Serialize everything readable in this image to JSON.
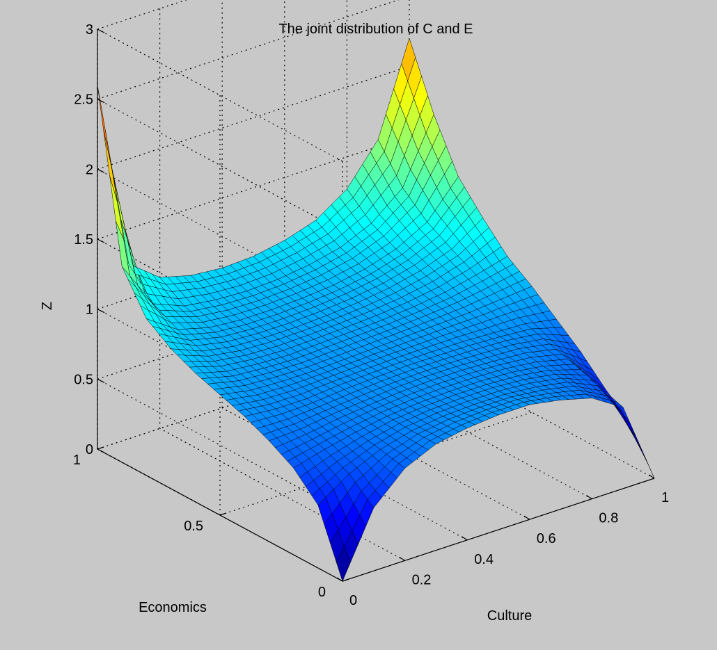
{
  "chart_data": {
    "type": "surface",
    "title": "The joint distribution of C and E",
    "xlabel": "Culture",
    "ylabel": "Economics",
    "zlabel": "Z",
    "xlim": [
      0,
      1
    ],
    "ylim": [
      0,
      1
    ],
    "zlim": [
      0,
      3
    ],
    "x_ticks": [
      "0",
      "0.2",
      "0.4",
      "0.6",
      "0.8",
      "1"
    ],
    "y_ticks": [
      "0",
      "0.5",
      "1"
    ],
    "z_ticks": [
      "0",
      "0.5",
      "1",
      "1.5",
      "2",
      "2.5",
      "3"
    ],
    "grid": true,
    "colormap": "jet",
    "corner_values": [
      {
        "culture": 0,
        "economics": 0,
        "z": 0.0
      },
      {
        "culture": 0,
        "economics": 1,
        "z": 2.6
      },
      {
        "culture": 1,
        "economics": 1,
        "z": 2.2
      },
      {
        "culture": 1,
        "economics": 0,
        "z": 0.0
      }
    ],
    "grid_rows": [
      {
        "economics": 0.0,
        "z": [
          0.0,
          0.45,
          0.66,
          0.76,
          0.8,
          0.82,
          0.82,
          0.78,
          0.72,
          0.58,
          0.0
        ]
      },
      {
        "economics": 0.1,
        "z": [
          0.45,
          0.6,
          0.7,
          0.76,
          0.79,
          0.8,
          0.8,
          0.78,
          0.74,
          0.64,
          0.3
        ]
      },
      {
        "economics": 0.2,
        "z": [
          0.62,
          0.68,
          0.73,
          0.77,
          0.79,
          0.8,
          0.8,
          0.79,
          0.76,
          0.7,
          0.45
        ]
      },
      {
        "economics": 0.3,
        "z": [
          0.72,
          0.73,
          0.76,
          0.78,
          0.8,
          0.81,
          0.81,
          0.8,
          0.79,
          0.75,
          0.62
        ]
      },
      {
        "economics": 0.4,
        "z": [
          0.8,
          0.78,
          0.78,
          0.8,
          0.81,
          0.82,
          0.82,
          0.82,
          0.81,
          0.8,
          0.76
        ]
      },
      {
        "economics": 0.5,
        "z": [
          0.86,
          0.82,
          0.81,
          0.81,
          0.82,
          0.83,
          0.84,
          0.85,
          0.86,
          0.88,
          0.9
        ]
      },
      {
        "economics": 0.6,
        "z": [
          0.92,
          0.86,
          0.84,
          0.83,
          0.84,
          0.85,
          0.86,
          0.88,
          0.91,
          0.96,
          1.02
        ]
      },
      {
        "economics": 0.7,
        "z": [
          1.0,
          0.91,
          0.87,
          0.86,
          0.86,
          0.87,
          0.89,
          0.92,
          0.97,
          1.05,
          1.2
        ]
      },
      {
        "economics": 0.8,
        "z": [
          1.12,
          0.97,
          0.91,
          0.89,
          0.89,
          0.9,
          0.92,
          0.96,
          1.03,
          1.15,
          1.4
        ]
      },
      {
        "economics": 0.9,
        "z": [
          1.4,
          1.06,
          0.97,
          0.94,
          0.93,
          0.94,
          0.97,
          1.02,
          1.12,
          1.3,
          1.75
        ]
      },
      {
        "economics": 1.0,
        "z": [
          2.6,
          1.25,
          1.08,
          1.02,
          1.0,
          1.01,
          1.05,
          1.12,
          1.27,
          1.55,
          2.2
        ]
      }
    ]
  }
}
